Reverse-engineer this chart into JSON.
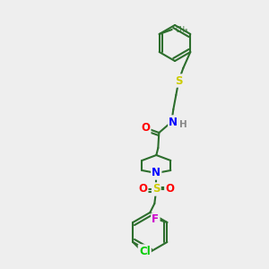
{
  "bg_color": "#eeeeee",
  "bond_color": "#2d6e2d",
  "bond_width": 1.5,
  "atom_colors": {
    "O": "#ff0000",
    "N": "#0000ff",
    "S": "#cccc00",
    "F": "#cc00cc",
    "Cl": "#00cc00",
    "H": "#888888"
  },
  "font_size": 7.5,
  "font_size_small": 6.5
}
